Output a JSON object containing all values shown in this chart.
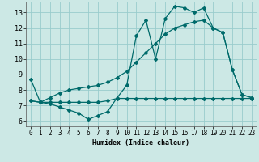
{
  "xlabel": "Humidex (Indice chaleur)",
  "bg_color": "#cce8e5",
  "grid_color": "#99cccc",
  "line_color": "#006b6b",
  "xlim": [
    -0.5,
    23.5
  ],
  "ylim": [
    5.65,
    13.7
  ],
  "xticks": [
    0,
    1,
    2,
    3,
    4,
    5,
    6,
    7,
    8,
    9,
    10,
    11,
    12,
    13,
    14,
    15,
    16,
    17,
    18,
    19,
    20,
    21,
    22,
    23
  ],
  "yticks": [
    6,
    7,
    8,
    9,
    10,
    11,
    12,
    13
  ],
  "curve1_x": [
    0,
    1,
    2,
    3,
    4,
    5,
    6,
    7,
    8,
    9,
    10,
    11,
    12,
    13,
    14,
    15,
    16,
    17,
    18,
    19,
    20,
    21,
    22,
    23
  ],
  "curve1_y": [
    8.7,
    7.2,
    7.1,
    6.9,
    6.7,
    6.5,
    6.1,
    6.35,
    6.6,
    7.5,
    8.3,
    11.5,
    12.5,
    10.0,
    12.6,
    13.4,
    13.3,
    13.0,
    13.3,
    12.0,
    11.7,
    9.3,
    7.7,
    7.5
  ],
  "curve2_x": [
    0,
    1,
    2,
    3,
    4,
    5,
    6,
    7,
    8,
    9,
    10,
    11,
    12,
    13,
    14,
    15,
    16,
    17,
    18,
    19,
    20,
    21,
    22,
    23
  ],
  "curve2_y": [
    7.3,
    7.2,
    7.2,
    7.2,
    7.2,
    7.2,
    7.2,
    7.2,
    7.3,
    7.45,
    7.45,
    7.45,
    7.45,
    7.45,
    7.45,
    7.45,
    7.45,
    7.45,
    7.45,
    7.45,
    7.45,
    7.45,
    7.45,
    7.45
  ],
  "curve3_x": [
    0,
    1,
    2,
    3,
    4,
    5,
    6,
    7,
    8,
    9,
    10,
    11,
    12,
    13,
    14,
    15,
    16,
    17,
    18,
    19,
    20,
    21,
    22,
    23
  ],
  "curve3_y": [
    7.3,
    7.2,
    7.5,
    7.8,
    8.0,
    8.1,
    8.2,
    8.3,
    8.5,
    8.8,
    9.2,
    9.8,
    10.4,
    11.0,
    11.6,
    12.0,
    12.2,
    12.4,
    12.5,
    12.0,
    11.7,
    9.3,
    7.7,
    7.5
  ]
}
